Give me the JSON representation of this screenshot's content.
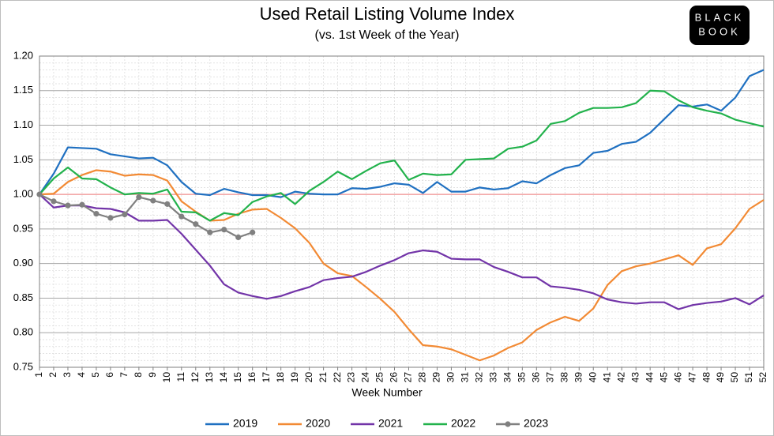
{
  "chart_data": {
    "type": "line",
    "title": "Used Retail Listing Volume Index",
    "subtitle": "(vs. 1st Week of the Year)",
    "x_label": "Week Number",
    "logo": [
      "BLACK",
      "BOOK"
    ],
    "categories": [
      "1",
      "2",
      "3",
      "4",
      "5",
      "6",
      "7",
      "8",
      "9",
      "10",
      "11",
      "12",
      "13",
      "14",
      "15",
      "16",
      "17",
      "18",
      "19",
      "20",
      "21",
      "22",
      "23",
      "24",
      "25",
      "26",
      "27",
      "28",
      "29",
      "30",
      "31",
      "32",
      "33",
      "34",
      "35",
      "36",
      "37",
      "38",
      "39",
      "40",
      "41",
      "42",
      "43",
      "44",
      "45",
      "46",
      "47",
      "48",
      "49",
      "50",
      "51",
      "52"
    ],
    "ylim": [
      0.75,
      1.2
    ],
    "yticks": [
      {
        "value": 0.75,
        "label": "0.75"
      },
      {
        "value": 0.8,
        "label": "0.80"
      },
      {
        "value": 0.85,
        "label": "0.85"
      },
      {
        "value": 0.9,
        "label": "0.90"
      },
      {
        "value": 0.95,
        "label": "0.95"
      },
      {
        "value": 1.0,
        "label": "1.00"
      },
      {
        "value": 1.05,
        "label": "1.05"
      },
      {
        "value": 1.1,
        "label": "1.10"
      },
      {
        "value": 1.15,
        "label": "1.15"
      },
      {
        "value": 1.2,
        "label": "1.20"
      }
    ],
    "grid": true,
    "reference_line": {
      "value": 1.0,
      "color": "#f4a0a0"
    },
    "legend": "bottom",
    "series": [
      {
        "name": "2019",
        "color": "#1f70c1",
        "values": [
          1.0,
          1.03,
          1.068,
          1.067,
          1.066,
          1.058,
          1.055,
          1.052,
          1.053,
          1.042,
          1.018,
          1.001,
          0.999,
          1.008,
          1.003,
          0.999,
          0.999,
          0.996,
          1.004,
          1.001,
          1.0,
          1.0,
          1.009,
          1.008,
          1.011,
          1.016,
          1.014,
          1.002,
          1.018,
          1.004,
          1.004,
          1.01,
          1.007,
          1.009,
          1.019,
          1.016,
          1.028,
          1.038,
          1.042,
          1.06,
          1.063,
          1.073,
          1.076,
          1.089,
          1.109,
          1.129,
          1.127,
          1.13,
          1.121,
          1.14,
          1.171,
          1.18
        ]
      },
      {
        "name": "2020",
        "color": "#f28a34",
        "values": [
          1.0,
          1.001,
          1.018,
          1.028,
          1.035,
          1.033,
          1.027,
          1.029,
          1.028,
          1.02,
          0.99,
          0.975,
          0.962,
          0.963,
          0.972,
          0.978,
          0.979,
          0.966,
          0.951,
          0.93,
          0.9,
          0.886,
          0.882,
          0.866,
          0.849,
          0.83,
          0.805,
          0.782,
          0.78,
          0.776,
          0.768,
          0.76,
          0.767,
          0.778,
          0.786,
          0.804,
          0.815,
          0.823,
          0.817,
          0.835,
          0.869,
          0.889,
          0.896,
          0.9,
          0.906,
          0.912,
          0.898,
          0.922,
          0.928,
          0.951,
          0.979,
          0.992
        ]
      },
      {
        "name": "2021",
        "color": "#7234a8",
        "values": [
          1.0,
          0.981,
          0.984,
          0.984,
          0.98,
          0.979,
          0.974,
          0.962,
          0.962,
          0.963,
          0.943,
          0.92,
          0.897,
          0.87,
          0.858,
          0.853,
          0.849,
          0.853,
          0.86,
          0.866,
          0.876,
          0.879,
          0.881,
          0.888,
          0.897,
          0.905,
          0.915,
          0.919,
          0.917,
          0.907,
          0.906,
          0.906,
          0.895,
          0.888,
          0.88,
          0.88,
          0.867,
          0.865,
          0.862,
          0.857,
          0.848,
          0.844,
          0.842,
          0.844,
          0.844,
          0.834,
          0.84,
          0.843,
          0.845,
          0.85,
          0.841,
          0.854
        ]
      },
      {
        "name": "2022",
        "color": "#22b24c",
        "values": [
          1.0,
          1.023,
          1.039,
          1.023,
          1.022,
          1.01,
          1.0,
          1.002,
          1.001,
          1.007,
          0.975,
          0.974,
          0.962,
          0.973,
          0.97,
          0.989,
          0.997,
          1.002,
          0.986,
          1.005,
          1.018,
          1.033,
          1.022,
          1.034,
          1.045,
          1.049,
          1.021,
          1.03,
          1.028,
          1.029,
          1.05,
          1.051,
          1.052,
          1.066,
          1.069,
          1.078,
          1.102,
          1.106,
          1.118,
          1.125,
          1.125,
          1.126,
          1.132,
          1.15,
          1.149,
          1.136,
          1.126,
          1.121,
          1.117,
          1.108,
          1.103,
          1.098
        ]
      },
      {
        "name": "2023",
        "color": "#808080",
        "markers": true,
        "values": [
          1.0,
          0.99,
          0.984,
          0.985,
          0.972,
          0.966,
          0.971,
          0.996,
          0.991,
          0.986,
          0.968,
          0.957,
          0.945,
          0.949,
          0.938,
          0.945,
          null,
          null,
          null,
          null,
          null,
          null,
          null,
          null,
          null,
          null,
          null,
          null,
          null,
          null,
          null,
          null,
          null,
          null,
          null,
          null,
          null,
          null,
          null,
          null,
          null,
          null,
          null,
          null,
          null,
          null,
          null,
          null,
          null,
          null,
          null,
          null
        ]
      }
    ]
  }
}
